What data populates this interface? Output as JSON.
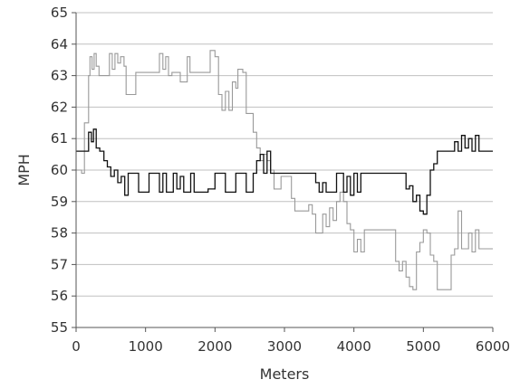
{
  "chart_data": {
    "type": "line",
    "xlabel": "Meters",
    "ylabel": "MPH",
    "xlim": [
      0,
      6000
    ],
    "ylim": [
      55,
      65
    ],
    "x_ticks": [
      "0",
      "1000",
      "2000",
      "3000",
      "4000",
      "5000",
      "6000"
    ],
    "y_ticks": [
      "55",
      "56",
      "57",
      "58",
      "59",
      "60",
      "61",
      "62",
      "63",
      "64",
      "65"
    ],
    "grid": "horizontal",
    "legend": "none",
    "series": [
      {
        "color": "#999999",
        "points": [
          [
            0,
            60.0
          ],
          [
            80,
            59.9
          ],
          [
            120,
            61.5
          ],
          [
            180,
            63.0
          ],
          [
            200,
            63.6
          ],
          [
            230,
            63.2
          ],
          [
            260,
            63.7
          ],
          [
            290,
            63.3
          ],
          [
            330,
            63.0
          ],
          [
            450,
            63.0
          ],
          [
            480,
            63.7
          ],
          [
            520,
            63.2
          ],
          [
            560,
            63.7
          ],
          [
            600,
            63.4
          ],
          [
            640,
            63.6
          ],
          [
            690,
            63.3
          ],
          [
            720,
            62.4
          ],
          [
            820,
            62.4
          ],
          [
            860,
            63.1
          ],
          [
            1150,
            63.1
          ],
          [
            1200,
            63.7
          ],
          [
            1250,
            63.2
          ],
          [
            1290,
            63.6
          ],
          [
            1330,
            63.0
          ],
          [
            1380,
            63.1
          ],
          [
            1450,
            63.1
          ],
          [
            1500,
            62.8
          ],
          [
            1570,
            62.8
          ],
          [
            1600,
            63.6
          ],
          [
            1640,
            63.1
          ],
          [
            1900,
            63.1
          ],
          [
            1930,
            63.8
          ],
          [
            2000,
            63.6
          ],
          [
            2050,
            62.4
          ],
          [
            2100,
            61.9
          ],
          [
            2150,
            62.5
          ],
          [
            2200,
            61.9
          ],
          [
            2250,
            62.8
          ],
          [
            2300,
            62.6
          ],
          [
            2330,
            63.2
          ],
          [
            2400,
            63.1
          ],
          [
            2450,
            61.8
          ],
          [
            2500,
            61.8
          ],
          [
            2550,
            61.2
          ],
          [
            2600,
            60.7
          ],
          [
            2650,
            60.3
          ],
          [
            2700,
            60.5
          ],
          [
            2750,
            60.3
          ],
          [
            2800,
            60.0
          ],
          [
            2850,
            59.4
          ],
          [
            2900,
            59.4
          ],
          [
            2950,
            59.8
          ],
          [
            3050,
            59.8
          ],
          [
            3100,
            59.1
          ],
          [
            3150,
            58.7
          ],
          [
            3300,
            58.7
          ],
          [
            3350,
            58.9
          ],
          [
            3400,
            58.6
          ],
          [
            3450,
            58.0
          ],
          [
            3500,
            58.0
          ],
          [
            3550,
            58.6
          ],
          [
            3600,
            58.2
          ],
          [
            3650,
            58.8
          ],
          [
            3700,
            58.4
          ],
          [
            3750,
            59.0
          ],
          [
            3800,
            59.3
          ],
          [
            3850,
            59.0
          ],
          [
            3900,
            58.3
          ],
          [
            3950,
            58.1
          ],
          [
            4000,
            57.4
          ],
          [
            4050,
            57.8
          ],
          [
            4100,
            57.4
          ],
          [
            4150,
            58.1
          ],
          [
            4500,
            58.1
          ],
          [
            4600,
            57.1
          ],
          [
            4650,
            56.8
          ],
          [
            4700,
            57.1
          ],
          [
            4750,
            56.6
          ],
          [
            4800,
            56.3
          ],
          [
            4850,
            56.2
          ],
          [
            4900,
            57.4
          ],
          [
            4950,
            57.7
          ],
          [
            5000,
            58.1
          ],
          [
            5050,
            58.0
          ],
          [
            5100,
            57.3
          ],
          [
            5150,
            57.1
          ],
          [
            5200,
            56.2
          ],
          [
            5350,
            56.2
          ],
          [
            5400,
            57.3
          ],
          [
            5450,
            57.5
          ],
          [
            5500,
            58.7
          ],
          [
            5550,
            57.5
          ],
          [
            5600,
            57.5
          ],
          [
            5650,
            58.0
          ],
          [
            5700,
            57.4
          ],
          [
            5750,
            58.1
          ],
          [
            5800,
            57.5
          ],
          [
            6000,
            57.5
          ]
        ]
      },
      {
        "color": "#111111",
        "points": [
          [
            0,
            60.6
          ],
          [
            150,
            60.6
          ],
          [
            180,
            61.2
          ],
          [
            220,
            60.9
          ],
          [
            250,
            61.3
          ],
          [
            290,
            60.7
          ],
          [
            340,
            60.6
          ],
          [
            400,
            60.3
          ],
          [
            450,
            60.1
          ],
          [
            500,
            59.8
          ],
          [
            550,
            60.0
          ],
          [
            600,
            59.6
          ],
          [
            650,
            59.8
          ],
          [
            700,
            59.2
          ],
          [
            750,
            59.9
          ],
          [
            850,
            59.9
          ],
          [
            900,
            59.3
          ],
          [
            1000,
            59.3
          ],
          [
            1050,
            59.9
          ],
          [
            1150,
            59.9
          ],
          [
            1200,
            59.3
          ],
          [
            1250,
            59.9
          ],
          [
            1300,
            59.3
          ],
          [
            1400,
            59.9
          ],
          [
            1450,
            59.4
          ],
          [
            1500,
            59.8
          ],
          [
            1550,
            59.3
          ],
          [
            1650,
            59.9
          ],
          [
            1700,
            59.3
          ],
          [
            1800,
            59.3
          ],
          [
            1900,
            59.4
          ],
          [
            2000,
            59.9
          ],
          [
            2100,
            59.9
          ],
          [
            2150,
            59.3
          ],
          [
            2250,
            59.3
          ],
          [
            2300,
            59.9
          ],
          [
            2400,
            59.9
          ],
          [
            2450,
            59.3
          ],
          [
            2550,
            59.9
          ],
          [
            2600,
            60.3
          ],
          [
            2650,
            60.5
          ],
          [
            2700,
            59.9
          ],
          [
            2750,
            60.6
          ],
          [
            2800,
            59.9
          ],
          [
            3400,
            59.9
          ],
          [
            3450,
            59.6
          ],
          [
            3500,
            59.3
          ],
          [
            3550,
            59.6
          ],
          [
            3600,
            59.3
          ],
          [
            3700,
            59.3
          ],
          [
            3750,
            59.9
          ],
          [
            3800,
            59.9
          ],
          [
            3850,
            59.3
          ],
          [
            3900,
            59.8
          ],
          [
            3950,
            59.2
          ],
          [
            4000,
            59.9
          ],
          [
            4050,
            59.3
          ],
          [
            4100,
            59.9
          ],
          [
            4700,
            59.9
          ],
          [
            4750,
            59.4
          ],
          [
            4800,
            59.5
          ],
          [
            4850,
            59.0
          ],
          [
            4900,
            59.2
          ],
          [
            4950,
            58.7
          ],
          [
            5000,
            58.6
          ],
          [
            5050,
            59.2
          ],
          [
            5100,
            60.0
          ],
          [
            5150,
            60.2
          ],
          [
            5200,
            60.6
          ],
          [
            5400,
            60.6
          ],
          [
            5450,
            60.9
          ],
          [
            5500,
            60.6
          ],
          [
            5550,
            61.1
          ],
          [
            5600,
            60.7
          ],
          [
            5650,
            61.0
          ],
          [
            5700,
            60.6
          ],
          [
            5750,
            61.1
          ],
          [
            5800,
            60.6
          ],
          [
            6000,
            60.6
          ]
        ]
      }
    ]
  }
}
